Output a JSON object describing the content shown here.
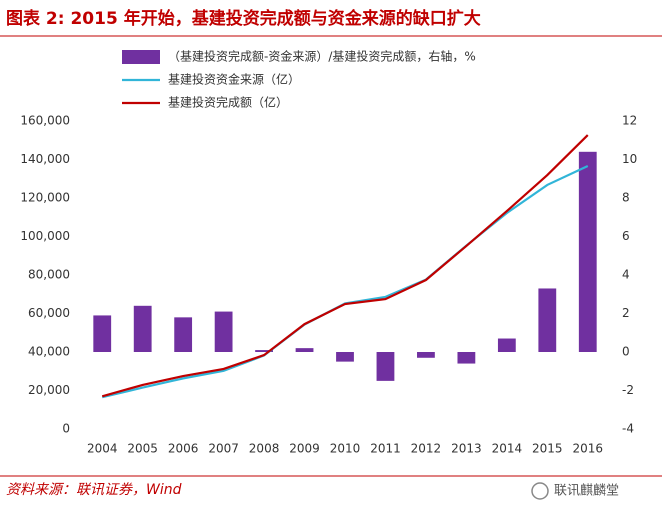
{
  "chart_data": {
    "type": "bar-line",
    "title": "图表 2: 2015 年开始，基建投资完成额与资金来源的缺口扩大",
    "source": "资料来源：联讯证券，Wind",
    "watermark": "联讯麒麟堂",
    "categories": [
      "2004",
      "2005",
      "2006",
      "2007",
      "2008",
      "2009",
      "2010",
      "2011",
      "2012",
      "2013",
      "2014",
      "2015",
      "2016"
    ],
    "series": [
      {
        "name": "（基建投资完成额-资金来源）/基建投资完成额，右轴，%",
        "type": "bar",
        "axis": "y2",
        "color": "#7030a0",
        "values": [
          1.9,
          2.4,
          1.8,
          2.1,
          0.1,
          0.2,
          -0.5,
          -1.5,
          -0.3,
          -0.6,
          0.7,
          3.3,
          10.4
        ]
      },
      {
        "name": "基建投资资金来源（亿）",
        "type": "line",
        "color": "#31b5d8",
        "values": [
          16500,
          21500,
          26300,
          30200,
          38200,
          54300,
          65200,
          68600,
          77600,
          95300,
          112200,
          126800,
          136600
        ]
      },
      {
        "name": "基建投资完成额（亿）",
        "type": "line",
        "color": "#c00000",
        "values": [
          17000,
          22900,
          27500,
          31200,
          38400,
          54500,
          64900,
          67500,
          77400,
          95100,
          113200,
          131900,
          152700
        ]
      }
    ],
    "ylim": [
      0,
      160000
    ],
    "yticks": [
      0,
      {
        "value": 20000,
        "label": "20,000"
      },
      {
        "value": 40000,
        "label": "40,000"
      },
      {
        "value": 60000,
        "label": "60,000"
      },
      {
        "value": 80000,
        "label": "80,000"
      },
      {
        "value": 100000,
        "label": "100,000"
      },
      {
        "value": 120000,
        "label": "120,000"
      },
      {
        "value": 140000,
        "label": "140,000"
      },
      {
        "value": 160000,
        "label": "160,000"
      }
    ],
    "y2lim": [
      -4,
      12
    ],
    "y2ticks": [
      -4,
      -2,
      0,
      2,
      4,
      6,
      8,
      10,
      12
    ],
    "grid": false
  }
}
